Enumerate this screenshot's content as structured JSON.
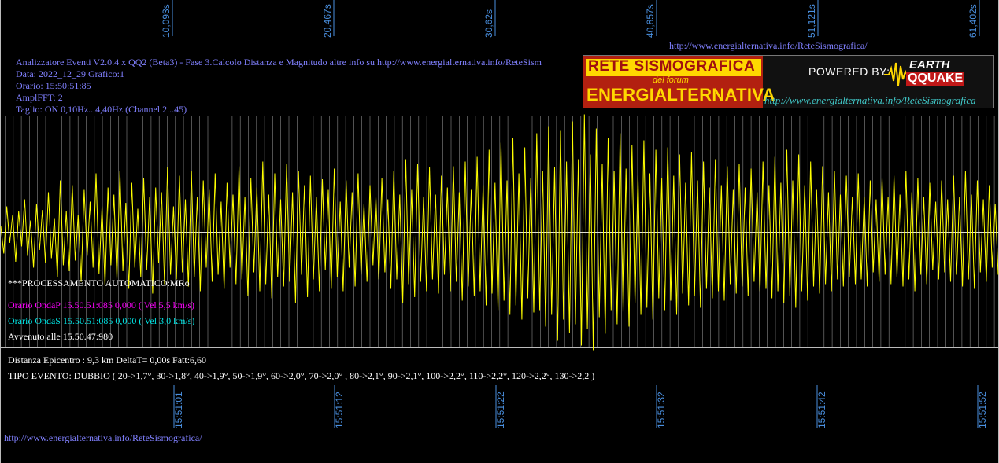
{
  "header": {
    "line1": "Analizzatore Eventi V2.0.4 x QQ2 (Beta3) - Fase 3.Calcolo Distanza e Magnitudo altre info su http://www.energialternativa.info/ReteSism",
    "line2": "Data: 2022_12_29 Grafico:1",
    "line3": "Orario: 15:50:51:85",
    "line4": "AmplFFT: 2",
    "line5": "Taglio: ON 0,10Hz...4,40Hz       (Channel 2...45)"
  },
  "url_top": "http://www.energialternativa.info/ReteSismografica/",
  "url_bottom": "http://www.energialternativa.info/ReteSismografica/",
  "logo": {
    "rete": "RETE SISMOGRAFICA",
    "del_forum": "del forum",
    "energialternativa": "ENERGIALTERNATIVA",
    "powered_by": "POWERED BY:",
    "earth": "EARTH",
    "qquake": "QQUAKE",
    "url": "http://www.energialternativa.info/ReteSismografica"
  },
  "info": {
    "processing": "***PROCESSAMENTO AUTOMATICO:MRo",
    "onda_p": "Orario OndaP 15.50.51:085  0,000 ( Vel 5,5 km/s)",
    "onda_s": "Orario OndaS 15.50.51:085  0,000 ( Vel 3,0 km/s)",
    "avvenuto": "Avvenuto alle 15.50.47:980",
    "distanza": "Distanza Epicentro : 9,3 km DeltaT= 0,00s  Fatt:6,60",
    "tipo_evento": "TIPO EVENTO: DUBBIO ( 20->1,7°, 30->1,8°, 40->1,9°, 50->1,9°, 60->2,0°, 70->2,0° , 80->2,1°, 90->2,1°, 100->2,2°, 110->2,2°, 120->2,2°, 130->2,2 )"
  },
  "colors": {
    "background": "#000000",
    "trace": "#ffff00",
    "grid": "#bbbbbb",
    "onda_p": "#ff00ff",
    "onda_s": "#00e5e5",
    "tick_label": "#4a90e0",
    "header_text": "#8080ff",
    "body_text": "#ffffff"
  },
  "chart_data": {
    "type": "line",
    "title": "",
    "xlabel": "",
    "ylabel": "",
    "top_axis_ticks": [
      "10,093s",
      "20,467s",
      "30,62s",
      "40,857s",
      "51,121s",
      "61,402s"
    ],
    "bottom_axis_ticks": [
      "15:51:01",
      "15:51:12",
      "15:51:22",
      "15:51:32",
      "15:51:42",
      "15:51:52"
    ],
    "grid": true,
    "series": [
      {
        "values": [
          0.05,
          -0.18,
          0.22,
          -0.09,
          0.15,
          -0.25,
          0.18,
          -0.12,
          0.28,
          -0.2,
          0.1,
          -0.3,
          0.24,
          -0.15,
          0.19,
          -0.26,
          0.34,
          -0.22,
          0.12,
          -0.38,
          0.44,
          -0.28,
          0.18,
          -0.33,
          0.4,
          -0.24,
          0.15,
          -0.42,
          0.36,
          -0.2,
          0.26,
          -0.3,
          0.5,
          -0.35,
          0.22,
          -0.45,
          0.38,
          -0.28,
          0.32,
          -0.4,
          0.52,
          -0.33,
          0.25,
          -0.48,
          0.42,
          -0.3,
          0.2,
          -0.38,
          0.46,
          -0.32,
          0.3,
          -0.52,
          0.38,
          -0.26,
          0.34,
          -0.44,
          0.55,
          -0.36,
          0.22,
          -0.4,
          0.48,
          -0.34,
          0.28,
          -0.46,
          0.52,
          -0.38,
          0.3,
          -0.5,
          0.44,
          -0.3,
          0.36,
          -0.42,
          0.5,
          -0.36,
          0.26,
          -0.48,
          0.42,
          -0.3,
          0.32,
          -0.44,
          0.56,
          -0.4,
          0.3,
          -0.54,
          0.46,
          -0.34,
          0.38,
          -0.5,
          0.6,
          -0.44,
          0.32,
          -0.56,
          0.5,
          -0.38,
          0.28,
          -0.46,
          0.58,
          -0.42,
          0.34,
          -0.6,
          0.52,
          -0.36,
          0.4,
          -0.55,
          0.48,
          -0.4,
          0.3,
          -0.5,
          0.45,
          -0.32,
          0.36,
          -0.48,
          0.54,
          -0.38,
          0.26,
          -0.5,
          0.44,
          -0.3,
          0.34,
          -0.46,
          0.5,
          -0.36,
          0.24,
          -0.42,
          0.4,
          -0.28,
          0.3,
          -0.4,
          0.46,
          -0.34,
          0.28,
          -0.48,
          0.52,
          -0.4,
          0.32,
          -0.6,
          0.62,
          -0.44,
          0.36,
          -0.55,
          0.58,
          -0.42,
          0.3,
          -0.5,
          0.55,
          -0.4,
          0.32,
          -0.52,
          0.48,
          -0.36,
          0.38,
          -0.5,
          0.56,
          -0.42,
          0.34,
          -0.58,
          0.6,
          -0.46,
          0.36,
          -0.54,
          0.64,
          -0.5,
          0.4,
          -0.62,
          0.7,
          -0.52,
          0.42,
          -0.66,
          0.76,
          -0.58,
          0.44,
          -0.7,
          0.8,
          -0.62,
          0.5,
          -0.74,
          0.72,
          -0.56,
          0.46,
          -0.68,
          0.84,
          -0.66,
          0.52,
          -0.8,
          0.9,
          -0.7,
          0.55,
          -0.92,
          0.86,
          -0.74,
          0.6,
          -0.85,
          0.94,
          -0.78,
          0.62,
          -0.96,
          1.0,
          -0.82,
          0.66,
          -1.0,
          0.88,
          -0.72,
          0.58,
          -0.86,
          0.8,
          -0.66,
          0.52,
          -0.78,
          0.84,
          -0.68,
          0.54,
          -0.8,
          0.74,
          -0.6,
          0.48,
          -0.7,
          0.78,
          -0.64,
          0.5,
          -0.74,
          0.7,
          -0.56,
          0.46,
          -0.66,
          0.72,
          -0.58,
          0.48,
          -0.7,
          0.66,
          -0.52,
          0.42,
          -0.62,
          0.68,
          -0.54,
          0.44,
          -0.64,
          0.6,
          -0.48,
          0.38,
          -0.56,
          0.62,
          -0.5,
          0.4,
          -0.58,
          0.56,
          -0.44,
          0.36,
          -0.52,
          0.58,
          -0.46,
          0.38,
          -0.54,
          0.54,
          -0.42,
          0.34,
          -0.5,
          0.6,
          -0.48,
          0.4,
          -0.56,
          0.64,
          -0.5,
          0.42,
          -0.6,
          0.7,
          -0.54,
          0.44,
          -0.64,
          0.66,
          -0.5,
          0.4,
          -0.58,
          0.6,
          -0.46,
          0.36,
          -0.52,
          0.56,
          -0.44,
          0.34,
          -0.5,
          0.52,
          -0.4,
          0.32,
          -0.46,
          0.48,
          -0.38,
          0.3,
          -0.44,
          0.5,
          -0.4,
          0.3,
          -0.46,
          0.44,
          -0.34,
          0.28,
          -0.42,
          0.46,
          -0.36,
          0.3,
          -0.44,
          0.48,
          -0.38,
          0.32,
          -0.46,
          0.52,
          -0.4,
          0.34,
          -0.5,
          0.46,
          -0.36,
          0.3,
          -0.44,
          0.42,
          -0.32,
          0.26,
          -0.4,
          0.44,
          -0.34,
          0.28,
          -0.42,
          0.48,
          -0.36,
          0.3,
          -0.46,
          0.52,
          -0.4,
          0.32,
          -0.48,
          0.44,
          -0.34,
          0.28,
          -0.42,
          0.4,
          -0.3,
          0.24,
          -0.36
        ]
      }
    ]
  }
}
